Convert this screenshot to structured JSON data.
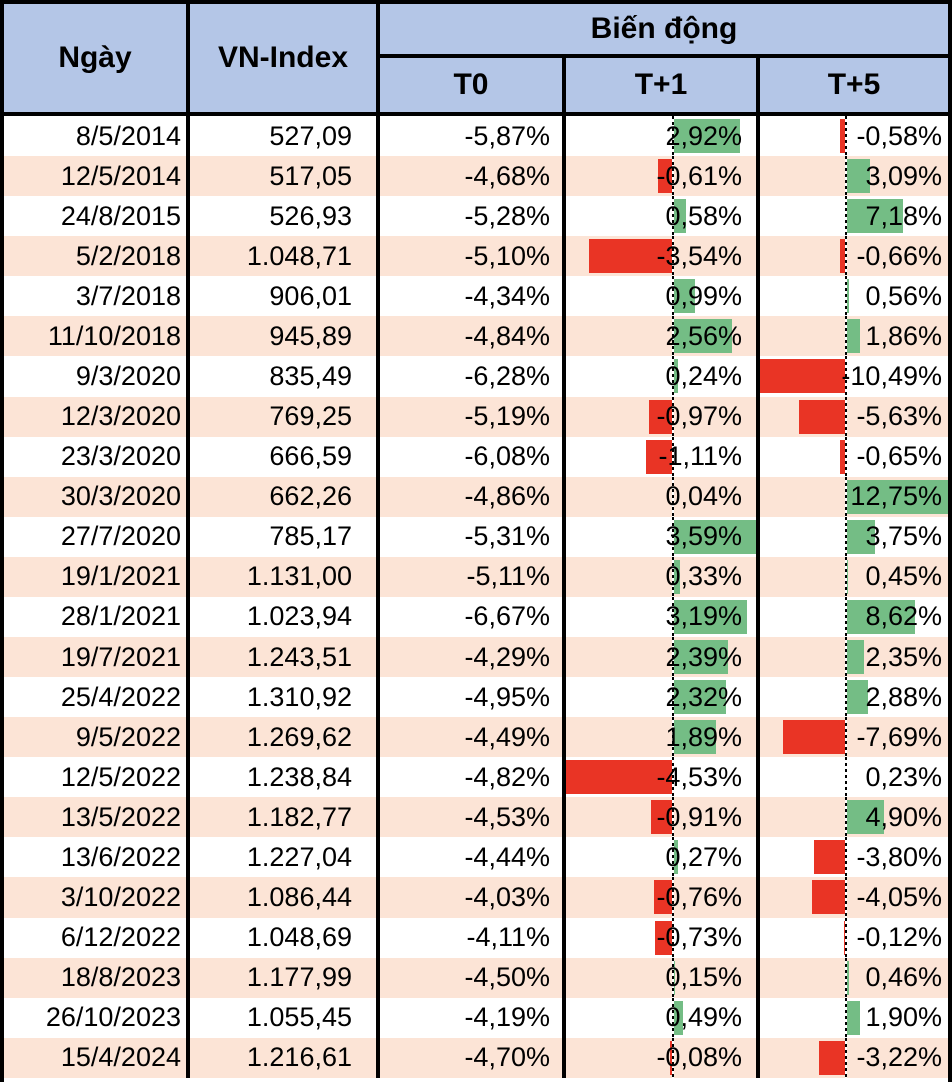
{
  "table": {
    "header": {
      "date": "Ngày",
      "vnindex": "VN-Index",
      "group": "Biến động",
      "t0": "T0",
      "t1": "T+1",
      "t5": "T+5"
    },
    "rows": [
      {
        "date": "8/5/2014",
        "index": "527,09",
        "t0": "-5,87%",
        "t1": "2,92%",
        "t5": "-0,58%"
      },
      {
        "date": "12/5/2014",
        "index": "517,05",
        "t0": "-4,68%",
        "t1": "-0,61%",
        "t5": "3,09%"
      },
      {
        "date": "24/8/2015",
        "index": "526,93",
        "t0": "-5,28%",
        "t1": "0,58%",
        "t5": "7,18%"
      },
      {
        "date": "5/2/2018",
        "index": "1.048,71",
        "t0": "-5,10%",
        "t1": "-3,54%",
        "t5": "-0,66%"
      },
      {
        "date": "3/7/2018",
        "index": "906,01",
        "t0": "-4,34%",
        "t1": "0,99%",
        "t5": "0,56%"
      },
      {
        "date": "11/10/2018",
        "index": "945,89",
        "t0": "-4,84%",
        "t1": "2,56%",
        "t5": "1,86%"
      },
      {
        "date": "9/3/2020",
        "index": "835,49",
        "t0": "-6,28%",
        "t1": "0,24%",
        "t5": "-10,49%"
      },
      {
        "date": "12/3/2020",
        "index": "769,25",
        "t0": "-5,19%",
        "t1": "-0,97%",
        "t5": "-5,63%"
      },
      {
        "date": "23/3/2020",
        "index": "666,59",
        "t0": "-6,08%",
        "t1": "-1,11%",
        "t5": "-0,65%"
      },
      {
        "date": "30/3/2020",
        "index": "662,26",
        "t0": "-4,86%",
        "t1": "0,04%",
        "t5": "12,75%"
      },
      {
        "date": "27/7/2020",
        "index": "785,17",
        "t0": "-5,31%",
        "t1": "3,59%",
        "t5": "3,75%"
      },
      {
        "date": "19/1/2021",
        "index": "1.131,00",
        "t0": "-5,11%",
        "t1": "0,33%",
        "t5": "0,45%"
      },
      {
        "date": "28/1/2021",
        "index": "1.023,94",
        "t0": "-6,67%",
        "t1": "3,19%",
        "t5": "8,62%"
      },
      {
        "date": "19/7/2021",
        "index": "1.243,51",
        "t0": "-4,29%",
        "t1": "2,39%",
        "t5": "2,35%"
      },
      {
        "date": "25/4/2022",
        "index": "1.310,92",
        "t0": "-4,95%",
        "t1": "2,32%",
        "t5": "2,88%"
      },
      {
        "date": "9/5/2022",
        "index": "1.269,62",
        "t0": "-4,49%",
        "t1": "1,89%",
        "t5": "-7,69%"
      },
      {
        "date": "12/5/2022",
        "index": "1.238,84",
        "t0": "-4,82%",
        "t1": "-4,53%",
        "t5": "0,23%"
      },
      {
        "date": "13/5/2022",
        "index": "1.182,77",
        "t0": "-4,53%",
        "t1": "-0,91%",
        "t5": "4,90%"
      },
      {
        "date": "13/6/2022",
        "index": "1.227,04",
        "t0": "-4,44%",
        "t1": "0,27%",
        "t5": "-3,80%"
      },
      {
        "date": "3/10/2022",
        "index": "1.086,44",
        "t0": "-4,03%",
        "t1": "-0,76%",
        "t5": "-4,05%"
      },
      {
        "date": "6/12/2022",
        "index": "1.048,69",
        "t0": "-4,11%",
        "t1": "-0,73%",
        "t5": "-0,12%"
      },
      {
        "date": "18/8/2023",
        "index": "1.177,99",
        "t0": "-4,50%",
        "t1": "0,15%",
        "t5": "0,46%"
      },
      {
        "date": "26/10/2023",
        "index": "1.055,45",
        "t0": "-4,19%",
        "t1": "0,49%",
        "t5": "1,90%"
      },
      {
        "date": "15/4/2024",
        "index": "1.216,61",
        "t0": "-4,70%",
        "t1": "-0,08%",
        "t5": "-3,22%"
      }
    ]
  },
  "colors": {
    "header_bg": "#B4C6E7",
    "row_bg": "#FFFFFF",
    "row_alt_bg": "#FCE4D6",
    "bar_positive": "#74BD85",
    "bar_negative": "#E93425",
    "border": "#000000",
    "text": "#000000"
  },
  "chart_data": {
    "type": "table",
    "columns": [
      "Ngày",
      "VN-Index",
      "T0",
      "T+1",
      "T+5"
    ],
    "rows": [
      [
        "8/5/2014",
        527.09,
        -5.87,
        2.92,
        -0.58
      ],
      [
        "12/5/2014",
        517.05,
        -4.68,
        -0.61,
        3.09
      ],
      [
        "24/8/2015",
        526.93,
        -5.28,
        0.58,
        7.18
      ],
      [
        "5/2/2018",
        1048.71,
        -5.1,
        -3.54,
        -0.66
      ],
      [
        "3/7/2018",
        906.01,
        -4.34,
        0.99,
        0.56
      ],
      [
        "11/10/2018",
        945.89,
        -4.84,
        2.56,
        1.86
      ],
      [
        "9/3/2020",
        835.49,
        -6.28,
        0.24,
        -10.49
      ],
      [
        "12/3/2020",
        769.25,
        -5.19,
        -0.97,
        -5.63
      ],
      [
        "23/3/2020",
        666.59,
        -6.08,
        -1.11,
        -0.65
      ],
      [
        "30/3/2020",
        662.26,
        -4.86,
        0.04,
        12.75
      ],
      [
        "27/7/2020",
        785.17,
        -5.31,
        3.59,
        3.75
      ],
      [
        "19/1/2021",
        1131.0,
        -5.11,
        0.33,
        0.45
      ],
      [
        "28/1/2021",
        1023.94,
        -6.67,
        3.19,
        8.62
      ],
      [
        "19/7/2021",
        1243.51,
        -4.29,
        2.39,
        2.35
      ],
      [
        "25/4/2022",
        1310.92,
        -4.95,
        2.32,
        2.88
      ],
      [
        "9/5/2022",
        1269.62,
        -4.49,
        1.89,
        -7.69
      ],
      [
        "12/5/2022",
        1238.84,
        -4.82,
        -4.53,
        0.23
      ],
      [
        "13/5/2022",
        1182.77,
        -4.53,
        -0.91,
        4.9
      ],
      [
        "13/6/2022",
        1227.04,
        -4.44,
        0.27,
        -3.8
      ],
      [
        "3/10/2022",
        1086.44,
        -4.03,
        -0.76,
        -4.05
      ],
      [
        "6/12/2022",
        1048.69,
        -4.11,
        -0.73,
        -0.12
      ],
      [
        "18/8/2023",
        1177.99,
        -4.5,
        0.15,
        0.46
      ],
      [
        "26/10/2023",
        1055.45,
        -4.19,
        0.49,
        1.9
      ],
      [
        "15/4/2024",
        1216.61,
        -4.7,
        -0.08,
        -3.22
      ]
    ],
    "layout": {
      "header_group": "Biến động",
      "bar_columns": [
        "T+1",
        "T+5"
      ],
      "bar_positive_color": "#74BD85",
      "bar_negative_color": "#E93425",
      "grid": "off",
      "row_striping": [
        "#FFFFFF",
        "#FCE4D6"
      ]
    }
  }
}
